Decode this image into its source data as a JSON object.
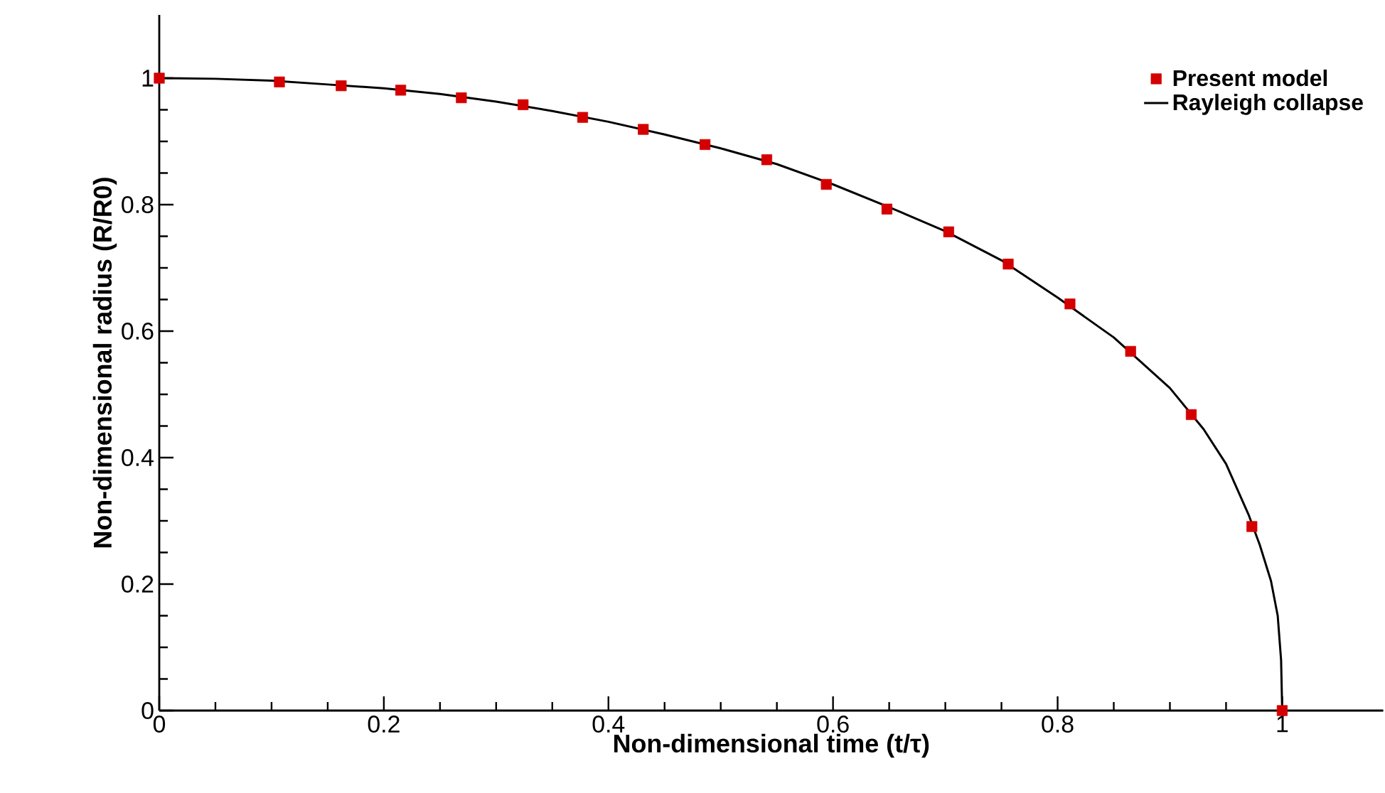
{
  "chart_data": {
    "type": "line",
    "xlabel": "Non-dimensional time (t/τ)",
    "ylabel": "Non-dimensional radius (R/R0)",
    "xlim": [
      0,
      1.09
    ],
    "ylim": [
      0,
      1.1
    ],
    "xticks": [
      0,
      0.2,
      0.4,
      0.6,
      0.8,
      1
    ],
    "yticks": [
      0,
      0.2,
      0.4,
      0.6,
      0.8,
      1
    ],
    "legend": "top right",
    "series": [
      {
        "name": "Present model",
        "type": "scatter",
        "marker": "square",
        "color": "#d40000",
        "x": [
          0,
          0.107,
          0.162,
          0.215,
          0.269,
          0.324,
          0.377,
          0.431,
          0.486,
          0.541,
          0.594,
          0.648,
          0.703,
          0.756,
          0.811,
          0.865,
          0.919,
          0.973,
          1.0
        ],
        "values": [
          1.0,
          0.994,
          0.988,
          0.981,
          0.969,
          0.958,
          0.938,
          0.919,
          0.895,
          0.871,
          0.832,
          0.793,
          0.757,
          0.706,
          0.643,
          0.568,
          0.468,
          0.291,
          0
        ]
      },
      {
        "name": "Rayleigh collapse",
        "type": "line",
        "color": "#000000",
        "x": [
          0,
          0.05,
          0.1,
          0.15,
          0.2,
          0.25,
          0.3,
          0.35,
          0.4,
          0.45,
          0.5,
          0.55,
          0.6,
          0.65,
          0.7,
          0.75,
          0.8,
          0.85,
          0.9,
          0.93,
          0.95,
          0.97,
          0.98,
          0.99,
          0.996,
          0.999,
          1.0
        ],
        "values": [
          1.0,
          0.999,
          0.996,
          0.99,
          0.984,
          0.975,
          0.963,
          0.948,
          0.931,
          0.911,
          0.889,
          0.864,
          0.832,
          0.796,
          0.758,
          0.712,
          0.653,
          0.59,
          0.51,
          0.445,
          0.39,
          0.31,
          0.262,
          0.205,
          0.15,
          0.08,
          0
        ]
      }
    ]
  }
}
